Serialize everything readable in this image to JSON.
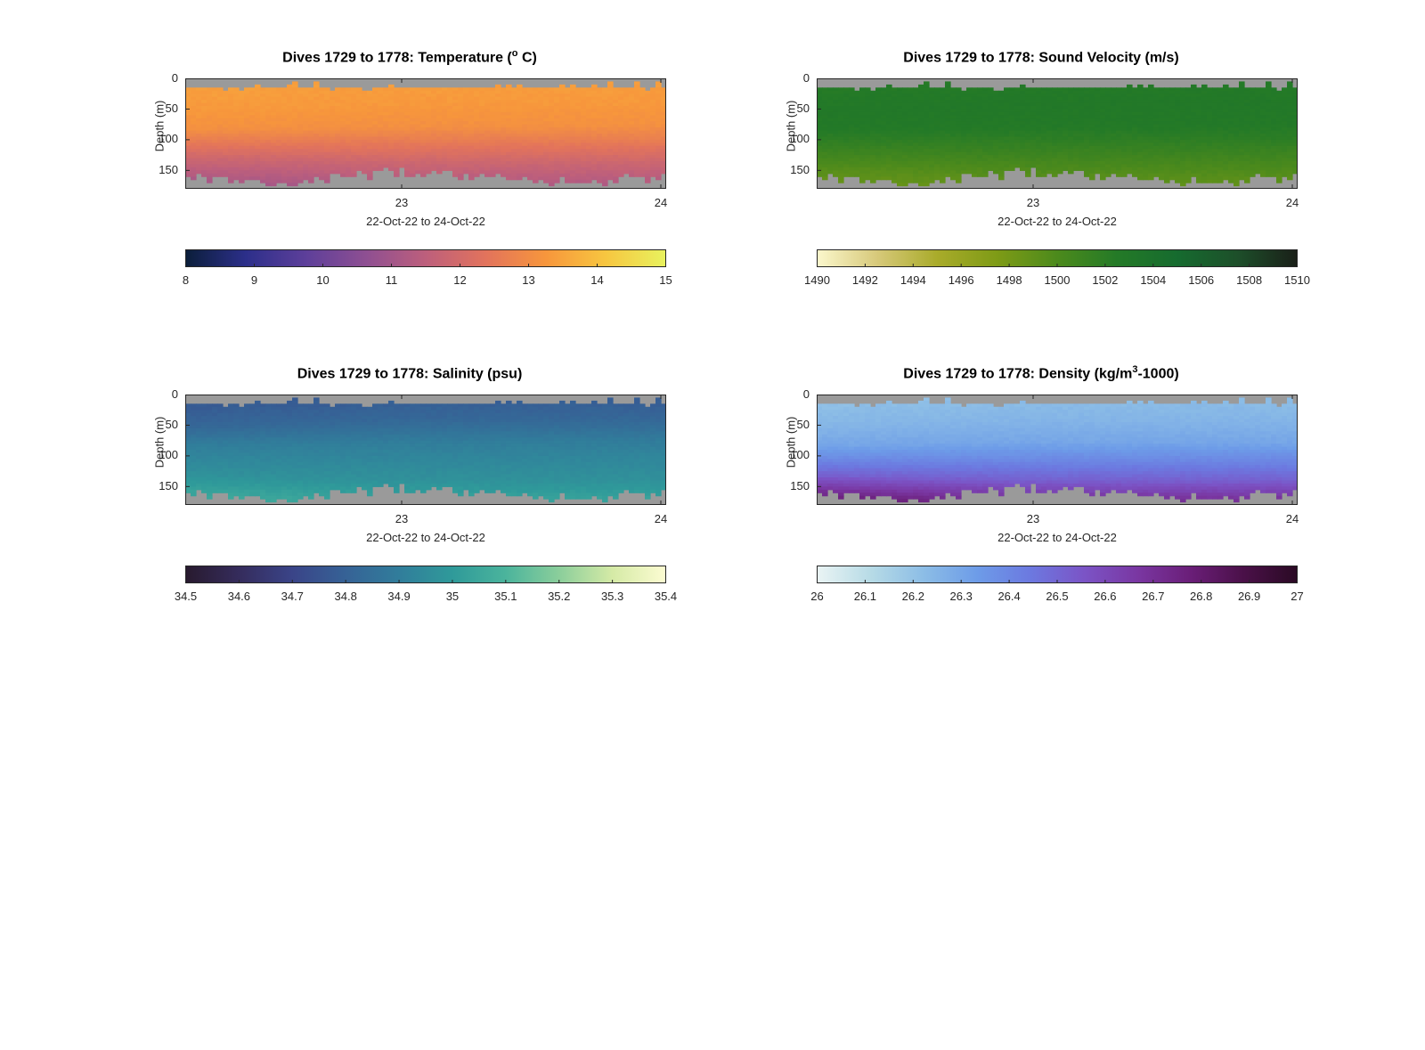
{
  "chart_data": [
    {
      "type": "heatmap",
      "variable": "temperature",
      "title_main": "Dives 1729 to 1778: Temperature (",
      "title_sup": "o",
      "title_end": " C)",
      "ylabel": "Depth (m)",
      "xlabel": "22-Oct-22 to 24-Oct-22",
      "yticks": [
        "0",
        "50",
        "100",
        "150"
      ],
      "xticks": [
        "23",
        "24"
      ],
      "ylim": [
        0,
        180
      ],
      "xlim": [
        22.0,
        24.0
      ],
      "clim": [
        8,
        15
      ],
      "colorbar_ticks": [
        "8",
        "9",
        "10",
        "11",
        "12",
        "13",
        "14",
        "15"
      ],
      "colormap": [
        "#0b1e3a",
        "#2c2f8a",
        "#5d3f9a",
        "#8e4f92",
        "#bd5f7c",
        "#e2735c",
        "#f7963c",
        "#f7c640",
        "#e8f25e"
      ],
      "profile_depth_m": [
        0,
        20,
        50,
        80,
        100,
        130,
        150,
        170
      ],
      "profile_values": [
        13.4,
        13.4,
        13.3,
        13.1,
        12.6,
        11.8,
        11.4,
        11.0
      ]
    },
    {
      "type": "heatmap",
      "variable": "sound_velocity",
      "title_main": "Dives 1729 to 1778: Sound Velocity (m/s)",
      "title_sup": "",
      "title_end": "",
      "ylabel": "Depth (m)",
      "xlabel": "22-Oct-22 to 24-Oct-22",
      "yticks": [
        "0",
        "50",
        "100",
        "150"
      ],
      "xticks": [
        "23",
        "24"
      ],
      "ylim": [
        0,
        180
      ],
      "xlim": [
        22.0,
        24.0
      ],
      "clim": [
        1490,
        1510
      ],
      "colorbar_ticks": [
        "1490",
        "1492",
        "1494",
        "1496",
        "1498",
        "1500",
        "1502",
        "1504",
        "1506",
        "1508",
        "1510"
      ],
      "colormap": [
        "#fbf7cc",
        "#d7c97a",
        "#a9ab2a",
        "#7e9b16",
        "#4c8a1c",
        "#247a27",
        "#166b2f",
        "#1d4f2a",
        "#1a1f18"
      ],
      "profile_depth_m": [
        0,
        20,
        50,
        80,
        100,
        130,
        150,
        170
      ],
      "profile_values": [
        1502.3,
        1502.5,
        1502.8,
        1502.6,
        1501.8,
        1500.3,
        1499.3,
        1498.6
      ]
    },
    {
      "type": "heatmap",
      "variable": "salinity",
      "title_main": "Dives 1729 to 1778: Salinity (psu)",
      "title_sup": "",
      "title_end": "",
      "ylabel": "Depth (m)",
      "xlabel": "22-Oct-22 to 24-Oct-22",
      "yticks": [
        "0",
        "50",
        "100",
        "150"
      ],
      "xticks": [
        "23",
        "24"
      ],
      "ylim": [
        0,
        180
      ],
      "xlim": [
        22.0,
        24.0
      ],
      "clim": [
        34.5,
        35.4
      ],
      "colorbar_ticks": [
        "34.5",
        "34.6",
        "34.7",
        "34.8",
        "34.9",
        "35",
        "35.1",
        "35.2",
        "35.3",
        "35.4"
      ],
      "colormap": [
        "#281a2e",
        "#352c5c",
        "#3a4488",
        "#366296",
        "#317d9b",
        "#2f9a9a",
        "#4bb49c",
        "#8bce9b",
        "#d5eaa6",
        "#fcfcd2"
      ],
      "profile_depth_m": [
        0,
        20,
        50,
        80,
        100,
        130,
        150,
        170
      ],
      "profile_values": [
        34.78,
        34.78,
        34.82,
        34.9,
        34.93,
        34.97,
        35.02,
        35.06
      ]
    },
    {
      "type": "heatmap",
      "variable": "density",
      "title_main": "Dives 1729 to 1778: Density (kg/m",
      "title_sup": "3",
      "title_end": "-1000)",
      "ylabel": "Depth (m)",
      "xlabel": "22-Oct-22 to 24-Oct-22",
      "yticks": [
        "0",
        "50",
        "100",
        "150"
      ],
      "xticks": [
        "23",
        "24"
      ],
      "ylim": [
        0,
        180
      ],
      "xlim": [
        22.0,
        24.0
      ],
      "clim": [
        26,
        27
      ],
      "colorbar_ticks": [
        "26",
        "26.1",
        "26.2",
        "26.3",
        "26.4",
        "26.5",
        "26.6",
        "26.7",
        "26.8",
        "26.9",
        "27"
      ],
      "colormap": [
        "#eaf4f4",
        "#b7dbe6",
        "#8cbde6",
        "#6d9ce8",
        "#6c79e0",
        "#7b54c6",
        "#7a37a2",
        "#6a1e78",
        "#4a1048",
        "#2a0a24"
      ],
      "profile_depth_m": [
        0,
        20,
        50,
        80,
        100,
        130,
        150,
        170
      ],
      "profile_values": [
        26.2,
        26.22,
        26.25,
        26.3,
        26.38,
        26.52,
        26.66,
        26.8
      ]
    }
  ],
  "colors": {
    "no_data": "#9a9a9a"
  }
}
